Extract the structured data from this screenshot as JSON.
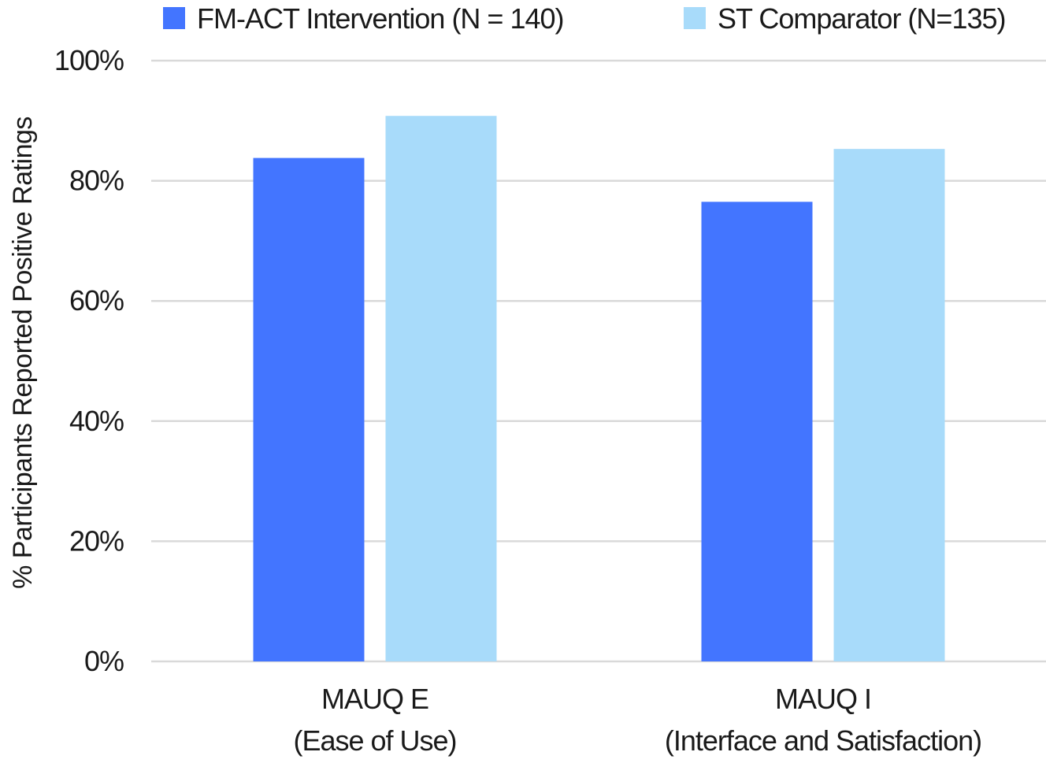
{
  "chart_data": {
    "type": "bar",
    "categories": [
      [
        "MAUQ E",
        "(Ease of Use)"
      ],
      [
        "MAUQ I",
        "(Interface and Satisfaction)"
      ]
    ],
    "series": [
      {
        "name": "FM-ACT Intervention (N = 140)",
        "color": "#4375FF",
        "values": [
          83.8,
          76.5
        ]
      },
      {
        "name": "ST Comparator (N=135)",
        "color": "#A8DBFA",
        "values": [
          90.8,
          85.3
        ]
      }
    ],
    "ylabel": "% Participants Reported Positive Ratings",
    "ylim": [
      0,
      100
    ],
    "yticks": [
      0,
      20,
      40,
      60,
      80,
      100
    ],
    "ytick_labels": [
      "0%",
      "20%",
      "40%",
      "60%",
      "80%",
      "100%"
    ],
    "grid": true,
    "legend_position": "top"
  }
}
